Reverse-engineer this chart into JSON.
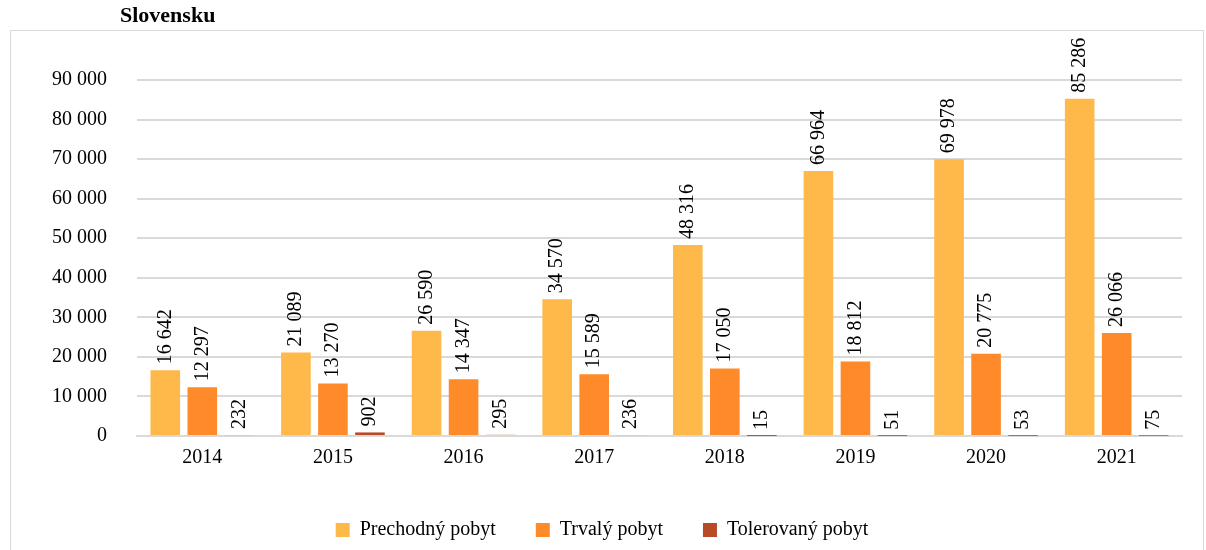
{
  "chart_data": {
    "type": "bar",
    "title": "Slovensku",
    "categories": [
      "2014",
      "2015",
      "2016",
      "2017",
      "2018",
      "2019",
      "2020",
      "2021"
    ],
    "series": [
      {
        "name": "Prechodný pobyt",
        "color": "#ffb84a",
        "values": [
          16642,
          21089,
          26590,
          34570,
          48316,
          66964,
          69978,
          85286
        ]
      },
      {
        "name": "Trvalý pobyt",
        "color": "#fe8a2a",
        "values": [
          12297,
          13270,
          14347,
          15589,
          17050,
          18812,
          20775,
          26066
        ]
      },
      {
        "name": "Tolerovaný pobyt",
        "color": "#b94a28",
        "values": [
          232,
          902,
          295,
          236,
          15,
          51,
          53,
          75
        ]
      }
    ],
    "ylim": [
      0,
      90000
    ],
    "yticks": [
      {
        "value": 0,
        "label": "0"
      },
      {
        "value": 10000,
        "label": "10 000"
      },
      {
        "value": 20000,
        "label": "20 000"
      },
      {
        "value": 30000,
        "label": "30 000"
      },
      {
        "value": 40000,
        "label": "40 000"
      },
      {
        "value": 50000,
        "label": "50 000"
      },
      {
        "value": 60000,
        "label": "60 000"
      },
      {
        "value": 70000,
        "label": "70 000"
      },
      {
        "value": 80000,
        "label": "80 000"
      },
      {
        "value": 90000,
        "label": "90 000"
      }
    ],
    "grid": "y",
    "legend": "bottom",
    "data_labels": true
  }
}
